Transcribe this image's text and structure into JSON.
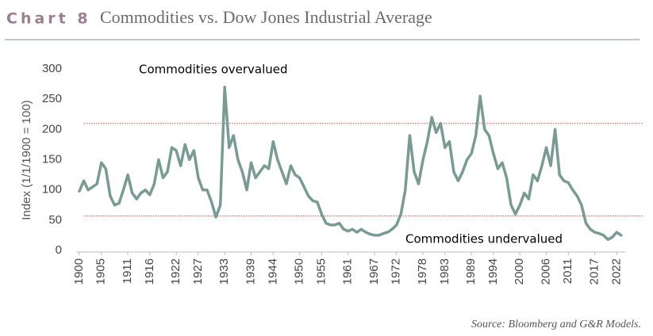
{
  "chart_data": {
    "type": "line",
    "chart_label": "Chart 8",
    "title": "Commodities vs. Dow Jones Industrial Average",
    "ylabel": "Index (1/1/1900 = 100)",
    "source": "Source: Bloomberg and G&R Models.",
    "annotations": [
      "Commodities overvalued",
      "Commodities undervalued"
    ],
    "color": "#7a9a94",
    "reference_lines": [
      210,
      57
    ],
    "reference_color": "#c0504d",
    "x": [
      1900,
      1901,
      1902,
      1903,
      1904,
      1905,
      1906,
      1907,
      1908,
      1909,
      1910,
      1911,
      1912,
      1913,
      1914,
      1915,
      1916,
      1917,
      1918,
      1919,
      1920,
      1921,
      1922,
      1923,
      1924,
      1925,
      1926,
      1927,
      1928,
      1929,
      1930,
      1931,
      1932,
      1933,
      1934,
      1935,
      1936,
      1937,
      1938,
      1939,
      1940,
      1941,
      1942,
      1943,
      1944,
      1945,
      1946,
      1947,
      1948,
      1949,
      1950,
      1951,
      1952,
      1953,
      1954,
      1955,
      1956,
      1957,
      1958,
      1959,
      1960,
      1961,
      1962,
      1963,
      1964,
      1965,
      1966,
      1967,
      1968,
      1969,
      1970,
      1971,
      1972,
      1973,
      1974,
      1975,
      1976,
      1977,
      1978,
      1979,
      1980,
      1981,
      1982,
      1983,
      1984,
      1985,
      1986,
      1987,
      1988,
      1989,
      1990,
      1991,
      1992,
      1993,
      1994,
      1995,
      1996,
      1997,
      1998,
      1999,
      2000,
      2001,
      2002,
      2003,
      2004,
      2005,
      2006,
      2007,
      2008,
      2009,
      2010,
      2011,
      2012,
      2013,
      2014,
      2015,
      2016,
      2017,
      2018,
      2019,
      2020,
      2021,
      2022,
      2023
    ],
    "values": [
      98,
      115,
      100,
      105,
      110,
      145,
      135,
      90,
      75,
      78,
      100,
      125,
      95,
      85,
      95,
      100,
      92,
      110,
      150,
      120,
      130,
      170,
      165,
      140,
      175,
      150,
      165,
      120,
      100,
      100,
      80,
      55,
      75,
      270,
      170,
      190,
      150,
      130,
      100,
      145,
      120,
      130,
      140,
      135,
      180,
      150,
      130,
      110,
      140,
      125,
      120,
      105,
      90,
      82,
      80,
      60,
      45,
      42,
      42,
      45,
      35,
      32,
      35,
      30,
      35,
      30,
      27,
      25,
      25,
      28,
      30,
      35,
      42,
      60,
      100,
      190,
      130,
      110,
      150,
      180,
      220,
      195,
      210,
      170,
      180,
      130,
      115,
      130,
      150,
      160,
      190,
      255,
      200,
      190,
      160,
      135,
      145,
      120,
      75,
      60,
      75,
      95,
      85,
      125,
      115,
      140,
      170,
      140,
      200,
      125,
      115,
      112,
      100,
      90,
      75,
      45,
      35,
      30,
      28,
      25,
      18,
      22,
      30,
      25
    ],
    "xlim": [
      1900,
      2025
    ],
    "xticks": [
      1900,
      1905,
      1911,
      1916,
      1922,
      1927,
      1933,
      1939,
      1944,
      1950,
      1955,
      1961,
      1967,
      1972,
      1978,
      1983,
      1989,
      1994,
      2000,
      2006,
      2011,
      2017,
      2022
    ],
    "ylim": [
      0,
      300
    ],
    "yticks": [
      0,
      50,
      100,
      150,
      200,
      250,
      300
    ]
  }
}
